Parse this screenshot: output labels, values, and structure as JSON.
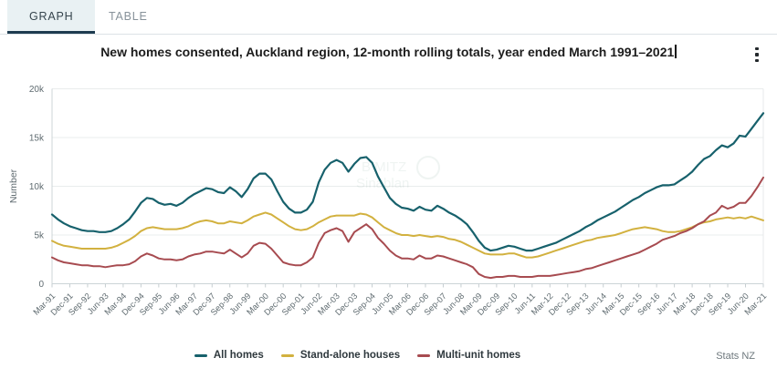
{
  "tabs": {
    "graph": "GRAPH",
    "table": "TABLE"
  },
  "title": "New homes consented, Auckland region, 12-month rolling totals, year ended March 1991–2021",
  "source": "Stats NZ",
  "watermark": {
    "line1": "B MITZ",
    "line2": "Sinablan"
  },
  "colors": {
    "all_homes": "#17616c",
    "stand_alone": "#d2b13f",
    "multi_unit": "#a74b50",
    "active_tab_underline": "#1e3c50",
    "grid": "#e9ecec",
    "axis": "#ccd4d7",
    "tick_text": "#5f6b70"
  },
  "chart_data": {
    "type": "line",
    "title": "New homes consented, Auckland region, 12-month rolling totals, year ended March 1991–2021",
    "xlabel": "",
    "ylabel": "Number",
    "ylim": [
      0,
      20000
    ],
    "grid": "horizontal",
    "legend_position": "bottom",
    "x_start": "Mar-91",
    "x_end": "Mar-21",
    "x_interval": "quarterly",
    "x_tick_labels": [
      "Mar-91",
      "Dec-91",
      "Sep-92",
      "Jun-93",
      "Mar-94",
      "Dec-94",
      "Sep-95",
      "Jun-96",
      "Mar-97",
      "Dec-97",
      "Sep-98",
      "Jun-99",
      "Mar-00",
      "Dec-00",
      "Sep-01",
      "Jun-02",
      "Mar-03",
      "Dec-03",
      "Sep-04",
      "Jun-05",
      "Mar-06",
      "Dec-06",
      "Sep-07",
      "Jun-08",
      "Mar-09",
      "Dec-09",
      "Sep-10",
      "Jun-11",
      "Mar-12",
      "Dec-12",
      "Sep-13",
      "Jun-14",
      "Mar-15",
      "Dec-15",
      "Sep-16",
      "Jun-17",
      "Mar-18",
      "Dec-18",
      "Sep-19",
      "Jun-20",
      "Mar-21"
    ],
    "y_ticks": [
      {
        "label": "0",
        "value": 0
      },
      {
        "label": "5k",
        "value": 5000
      },
      {
        "label": "10k",
        "value": 10000
      },
      {
        "label": "15k",
        "value": 15000
      },
      {
        "label": "20k",
        "value": 20000
      }
    ],
    "series": [
      {
        "name": "All homes",
        "color": "#17616c",
        "values": [
          7100,
          6600,
          6200,
          5900,
          5700,
          5500,
          5400,
          5400,
          5300,
          5300,
          5400,
          5700,
          6100,
          6600,
          7400,
          8300,
          8800,
          8700,
          8300,
          8100,
          8200,
          8000,
          8300,
          8800,
          9200,
          9500,
          9800,
          9700,
          9400,
          9300,
          9900,
          9500,
          8900,
          9700,
          10800,
          11300,
          11300,
          10700,
          9500,
          8400,
          7700,
          7300,
          7300,
          7600,
          8400,
          10400,
          11700,
          12400,
          12700,
          12400,
          11500,
          12300,
          12900,
          13000,
          12400,
          11000,
          9900,
          8800,
          8200,
          7800,
          7700,
          7500,
          7900,
          7600,
          7500,
          8000,
          7700,
          7300,
          7000,
          6600,
          6100,
          5300,
          4400,
          3700,
          3400,
          3500,
          3700,
          3900,
          3800,
          3600,
          3400,
          3400,
          3600,
          3800,
          4000,
          4200,
          4500,
          4800,
          5100,
          5400,
          5800,
          6100,
          6500,
          6800,
          7100,
          7400,
          7800,
          8200,
          8600,
          8900,
          9300,
          9600,
          9900,
          10100,
          10100,
          10200,
          10600,
          11000,
          11500,
          12200,
          12800,
          13100,
          13700,
          14200,
          14000,
          14400,
          15200,
          15100,
          15900,
          16700,
          17500
        ]
      },
      {
        "name": "Stand-alone houses",
        "color": "#d2b13f",
        "values": [
          4400,
          4100,
          3900,
          3800,
          3700,
          3600,
          3600,
          3600,
          3600,
          3600,
          3700,
          3900,
          4200,
          4500,
          4900,
          5400,
          5700,
          5800,
          5700,
          5600,
          5600,
          5600,
          5700,
          5900,
          6200,
          6400,
          6500,
          6400,
          6200,
          6200,
          6400,
          6300,
          6200,
          6500,
          6900,
          7100,
          7300,
          7100,
          6700,
          6300,
          5900,
          5600,
          5500,
          5600,
          5900,
          6300,
          6600,
          6900,
          7000,
          7000,
          7000,
          7000,
          7200,
          7100,
          6800,
          6300,
          5800,
          5500,
          5200,
          5000,
          5000,
          4900,
          5000,
          4900,
          4800,
          4900,
          4800,
          4600,
          4500,
          4300,
          4000,
          3700,
          3400,
          3100,
          3000,
          3000,
          3000,
          3100,
          3100,
          2900,
          2700,
          2700,
          2800,
          3000,
          3200,
          3400,
          3600,
          3800,
          4000,
          4200,
          4400,
          4500,
          4700,
          4800,
          4900,
          5000,
          5200,
          5400,
          5600,
          5700,
          5800,
          5700,
          5600,
          5400,
          5300,
          5300,
          5400,
          5600,
          5800,
          6100,
          6300,
          6400,
          6600,
          6700,
          6800,
          6700,
          6800,
          6700,
          6900,
          6700,
          6500
        ]
      },
      {
        "name": "Multi-unit homes",
        "color": "#a74b50",
        "values": [
          2700,
          2400,
          2200,
          2100,
          2000,
          1900,
          1900,
          1800,
          1800,
          1700,
          1800,
          1900,
          1900,
          2000,
          2300,
          2800,
          3100,
          2900,
          2600,
          2500,
          2500,
          2400,
          2500,
          2800,
          3000,
          3100,
          3300,
          3300,
          3200,
          3100,
          3500,
          3100,
          2700,
          3100,
          3900,
          4200,
          4100,
          3600,
          2900,
          2200,
          2000,
          1900,
          1900,
          2200,
          2700,
          4200,
          5200,
          5500,
          5700,
          5400,
          4300,
          5300,
          5700,
          6100,
          5600,
          4700,
          4100,
          3400,
          2900,
          2600,
          2600,
          2500,
          2900,
          2600,
          2600,
          2900,
          2800,
          2600,
          2400,
          2200,
          2000,
          1700,
          1000,
          700,
          600,
          700,
          700,
          800,
          800,
          700,
          700,
          700,
          800,
          800,
          800,
          900,
          1000,
          1100,
          1200,
          1300,
          1500,
          1600,
          1800,
          2000,
          2200,
          2400,
          2600,
          2800,
          3000,
          3200,
          3500,
          3800,
          4100,
          4500,
          4700,
          4900,
          5200,
          5400,
          5700,
          6100,
          6400,
          7000,
          7300,
          8000,
          7700,
          7900,
          8300,
          8300,
          9000,
          9900,
          10900
        ]
      }
    ]
  }
}
